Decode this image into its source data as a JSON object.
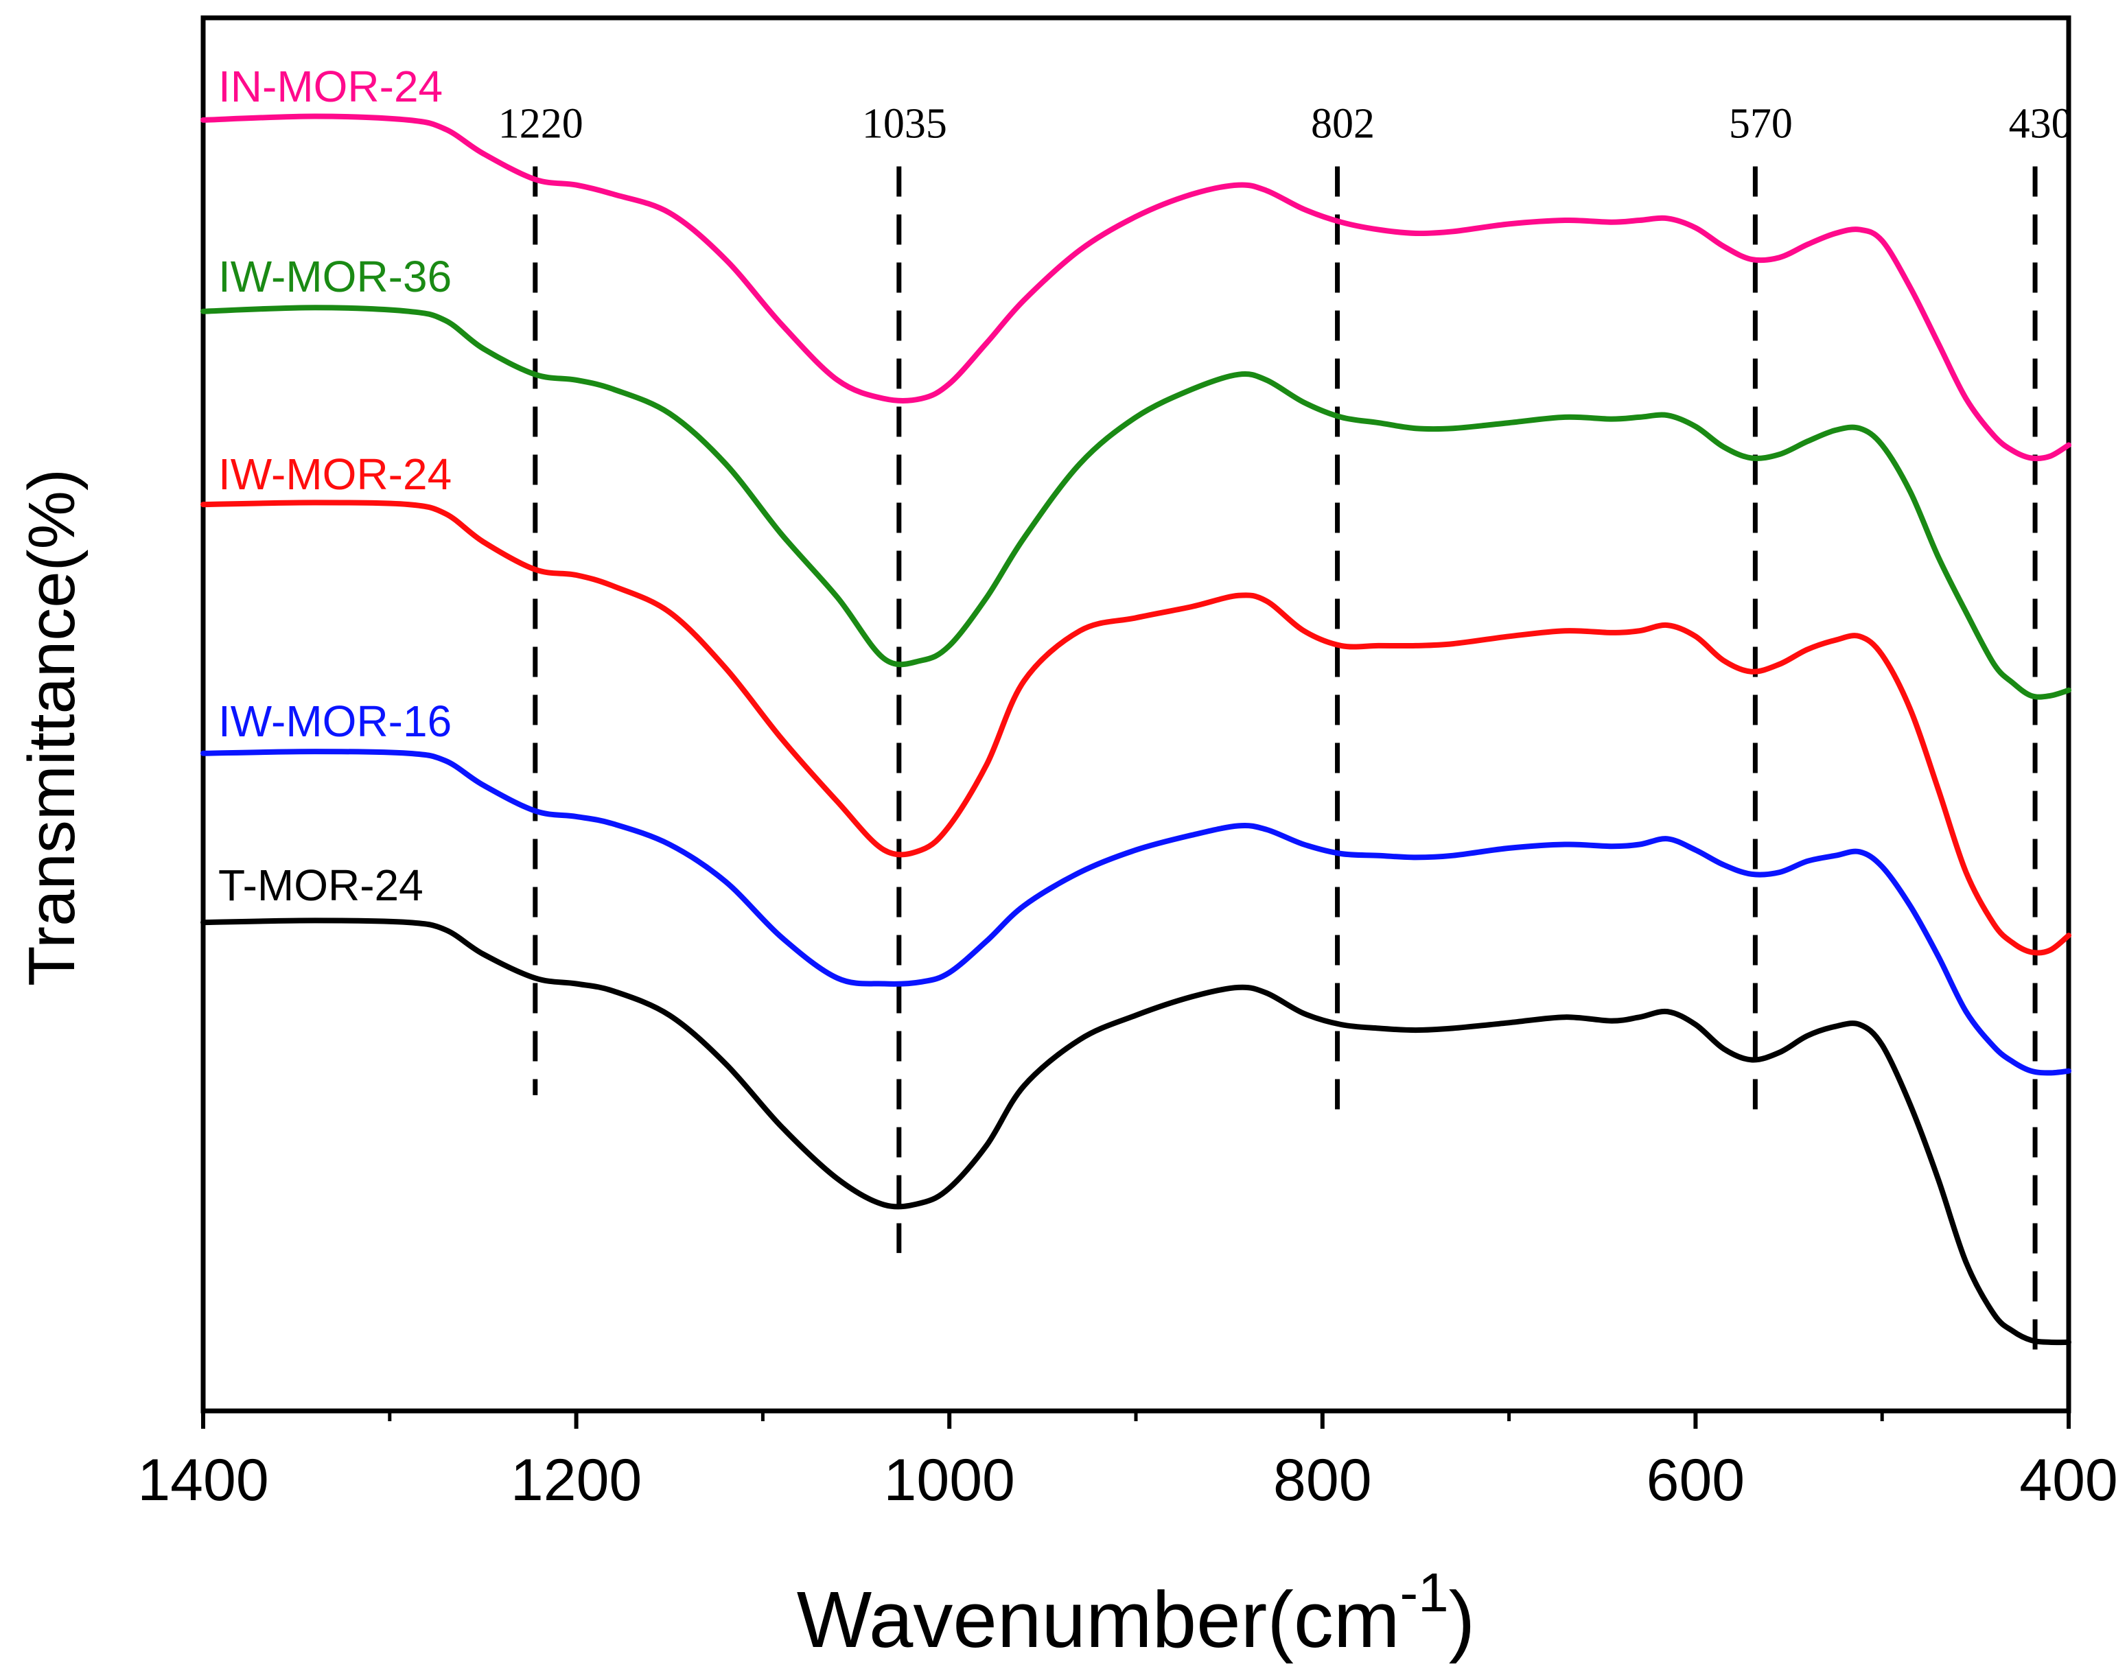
{
  "chart_data": {
    "type": "line",
    "title": "",
    "xlabel": "Wavenumber(cm",
    "xlabel_superscript": "-1",
    "xlabel_suffix": ")",
    "ylabel": "Transmittance(%)",
    "xlim": [
      1400,
      400
    ],
    "ylim": [
      0,
      7.5
    ],
    "x_ticks": [
      1400,
      1200,
      1000,
      800,
      600,
      400
    ],
    "x_minor_ticks": [
      1300,
      1100,
      900,
      700,
      500
    ],
    "y_ticks_shown": false,
    "grid": false,
    "peak_markers": [
      {
        "label": "1220",
        "x": 1222,
        "y_top": 6.7,
        "y_bottom": 1.7
      },
      {
        "label": "1035",
        "x": 1027,
        "y_top": 6.7,
        "y_bottom": 0.85
      },
      {
        "label": "802",
        "x": 792,
        "y_top": 6.7,
        "y_bottom": 1.6
      },
      {
        "label": "570",
        "x": 568,
        "y_top": 6.7,
        "y_bottom": 1.6
      },
      {
        "label": "430",
        "x": 418,
        "y_top": 6.7,
        "y_bottom": 0.25
      }
    ],
    "series": [
      {
        "name": "IN-MOR-24",
        "color": "#ff0a8c",
        "x": [
          1400,
          1340,
          1290,
          1270,
          1250,
          1222,
          1200,
          1180,
          1150,
          1120,
          1090,
          1060,
          1035,
          1015,
          1000,
          980,
          960,
          930,
          900,
          870,
          845,
          830,
          810,
          790,
          770,
          750,
          730,
          700,
          670,
          645,
          630,
          615,
          600,
          585,
          570,
          555,
          540,
          525,
          512,
          500,
          485,
          470,
          455,
          440,
          430,
          420,
          410,
          400
        ],
        "y": [
          6.95,
          6.97,
          6.95,
          6.9,
          6.77,
          6.63,
          6.6,
          6.55,
          6.45,
          6.2,
          5.85,
          5.55,
          5.45,
          5.45,
          5.53,
          5.75,
          5.98,
          6.25,
          6.43,
          6.55,
          6.6,
          6.57,
          6.47,
          6.4,
          6.36,
          6.34,
          6.35,
          6.39,
          6.41,
          6.4,
          6.41,
          6.42,
          6.37,
          6.27,
          6.2,
          6.21,
          6.28,
          6.34,
          6.36,
          6.3,
          6.05,
          5.75,
          5.45,
          5.25,
          5.17,
          5.13,
          5.14,
          5.2
        ]
      },
      {
        "name": "IW-MOR-36",
        "color": "#1a8a14",
        "x": [
          1400,
          1340,
          1290,
          1270,
          1250,
          1222,
          1200,
          1180,
          1150,
          1120,
          1090,
          1060,
          1035,
          1015,
          1000,
          980,
          960,
          930,
          900,
          870,
          845,
          830,
          810,
          790,
          770,
          750,
          730,
          700,
          670,
          645,
          630,
          615,
          600,
          585,
          570,
          555,
          540,
          525,
          512,
          500,
          485,
          470,
          455,
          440,
          430,
          420,
          410,
          400
        ],
        "y": [
          5.92,
          5.94,
          5.92,
          5.87,
          5.72,
          5.58,
          5.55,
          5.5,
          5.37,
          5.1,
          4.72,
          4.38,
          4.05,
          4.04,
          4.12,
          4.38,
          4.7,
          5.1,
          5.35,
          5.5,
          5.58,
          5.55,
          5.43,
          5.35,
          5.32,
          5.29,
          5.29,
          5.32,
          5.35,
          5.34,
          5.35,
          5.36,
          5.3,
          5.19,
          5.13,
          5.15,
          5.22,
          5.28,
          5.29,
          5.2,
          4.95,
          4.6,
          4.3,
          4.02,
          3.92,
          3.85,
          3.85,
          3.88
        ]
      },
      {
        "name": "IW-MOR-24",
        "color": "#ff0d0d",
        "x": [
          1400,
          1340,
          1290,
          1270,
          1250,
          1222,
          1200,
          1180,
          1150,
          1120,
          1090,
          1060,
          1035,
          1015,
          1000,
          980,
          960,
          930,
          900,
          870,
          845,
          830,
          810,
          790,
          770,
          750,
          730,
          700,
          670,
          645,
          630,
          615,
          600,
          585,
          570,
          555,
          540,
          525,
          512,
          500,
          485,
          470,
          455,
          440,
          430,
          420,
          410,
          400
        ],
        "y": [
          4.88,
          4.89,
          4.88,
          4.83,
          4.68,
          4.53,
          4.5,
          4.44,
          4.3,
          4.0,
          3.62,
          3.28,
          3.02,
          3.02,
          3.15,
          3.48,
          3.93,
          4.2,
          4.27,
          4.33,
          4.39,
          4.36,
          4.2,
          4.12,
          4.12,
          4.12,
          4.13,
          4.17,
          4.2,
          4.19,
          4.2,
          4.23,
          4.17,
          4.04,
          3.98,
          4.02,
          4.1,
          4.15,
          4.17,
          4.07,
          3.78,
          3.35,
          2.9,
          2.62,
          2.52,
          2.47,
          2.48,
          2.56
        ]
      },
      {
        "name": "IW-MOR-16",
        "color": "#0a14ff",
        "x": [
          1400,
          1340,
          1290,
          1270,
          1250,
          1222,
          1200,
          1180,
          1150,
          1120,
          1090,
          1060,
          1035,
          1015,
          1000,
          980,
          960,
          930,
          900,
          870,
          845,
          830,
          810,
          790,
          770,
          750,
          730,
          700,
          670,
          645,
          630,
          615,
          600,
          585,
          570,
          555,
          540,
          525,
          512,
          500,
          485,
          470,
          455,
          440,
          430,
          420,
          410,
          400
        ],
        "y": [
          3.54,
          3.55,
          3.54,
          3.5,
          3.37,
          3.23,
          3.2,
          3.16,
          3.05,
          2.85,
          2.55,
          2.33,
          2.3,
          2.31,
          2.36,
          2.53,
          2.72,
          2.9,
          3.02,
          3.1,
          3.15,
          3.13,
          3.05,
          3.0,
          2.99,
          2.98,
          2.99,
          3.03,
          3.05,
          3.04,
          3.05,
          3.08,
          3.02,
          2.94,
          2.89,
          2.9,
          2.96,
          2.99,
          3.01,
          2.93,
          2.72,
          2.45,
          2.15,
          1.96,
          1.88,
          1.83,
          1.82,
          1.83
        ]
      },
      {
        "name": "T-MOR-24",
        "color": "#000000",
        "x": [
          1400,
          1340,
          1290,
          1270,
          1250,
          1222,
          1200,
          1180,
          1150,
          1120,
          1090,
          1060,
          1035,
          1015,
          1000,
          980,
          960,
          930,
          900,
          870,
          845,
          830,
          810,
          790,
          770,
          750,
          730,
          700,
          670,
          645,
          630,
          615,
          600,
          585,
          570,
          555,
          540,
          525,
          512,
          500,
          485,
          470,
          455,
          440,
          430,
          420,
          410,
          400
        ],
        "y": [
          2.63,
          2.64,
          2.63,
          2.59,
          2.46,
          2.33,
          2.3,
          2.26,
          2.13,
          1.87,
          1.53,
          1.25,
          1.11,
          1.12,
          1.2,
          1.43,
          1.75,
          2.0,
          2.13,
          2.23,
          2.28,
          2.25,
          2.14,
          2.08,
          2.06,
          2.05,
          2.06,
          2.09,
          2.12,
          2.1,
          2.12,
          2.15,
          2.08,
          1.95,
          1.89,
          1.93,
          2.02,
          2.07,
          2.08,
          1.97,
          1.65,
          1.25,
          0.8,
          0.52,
          0.43,
          0.38,
          0.37,
          0.37
        ]
      }
    ],
    "series_labels": [
      "IN-MOR-24",
      "IW-MOR-36",
      "IW-MOR-24",
      "IW-MOR-16",
      "T-MOR-24"
    ]
  }
}
